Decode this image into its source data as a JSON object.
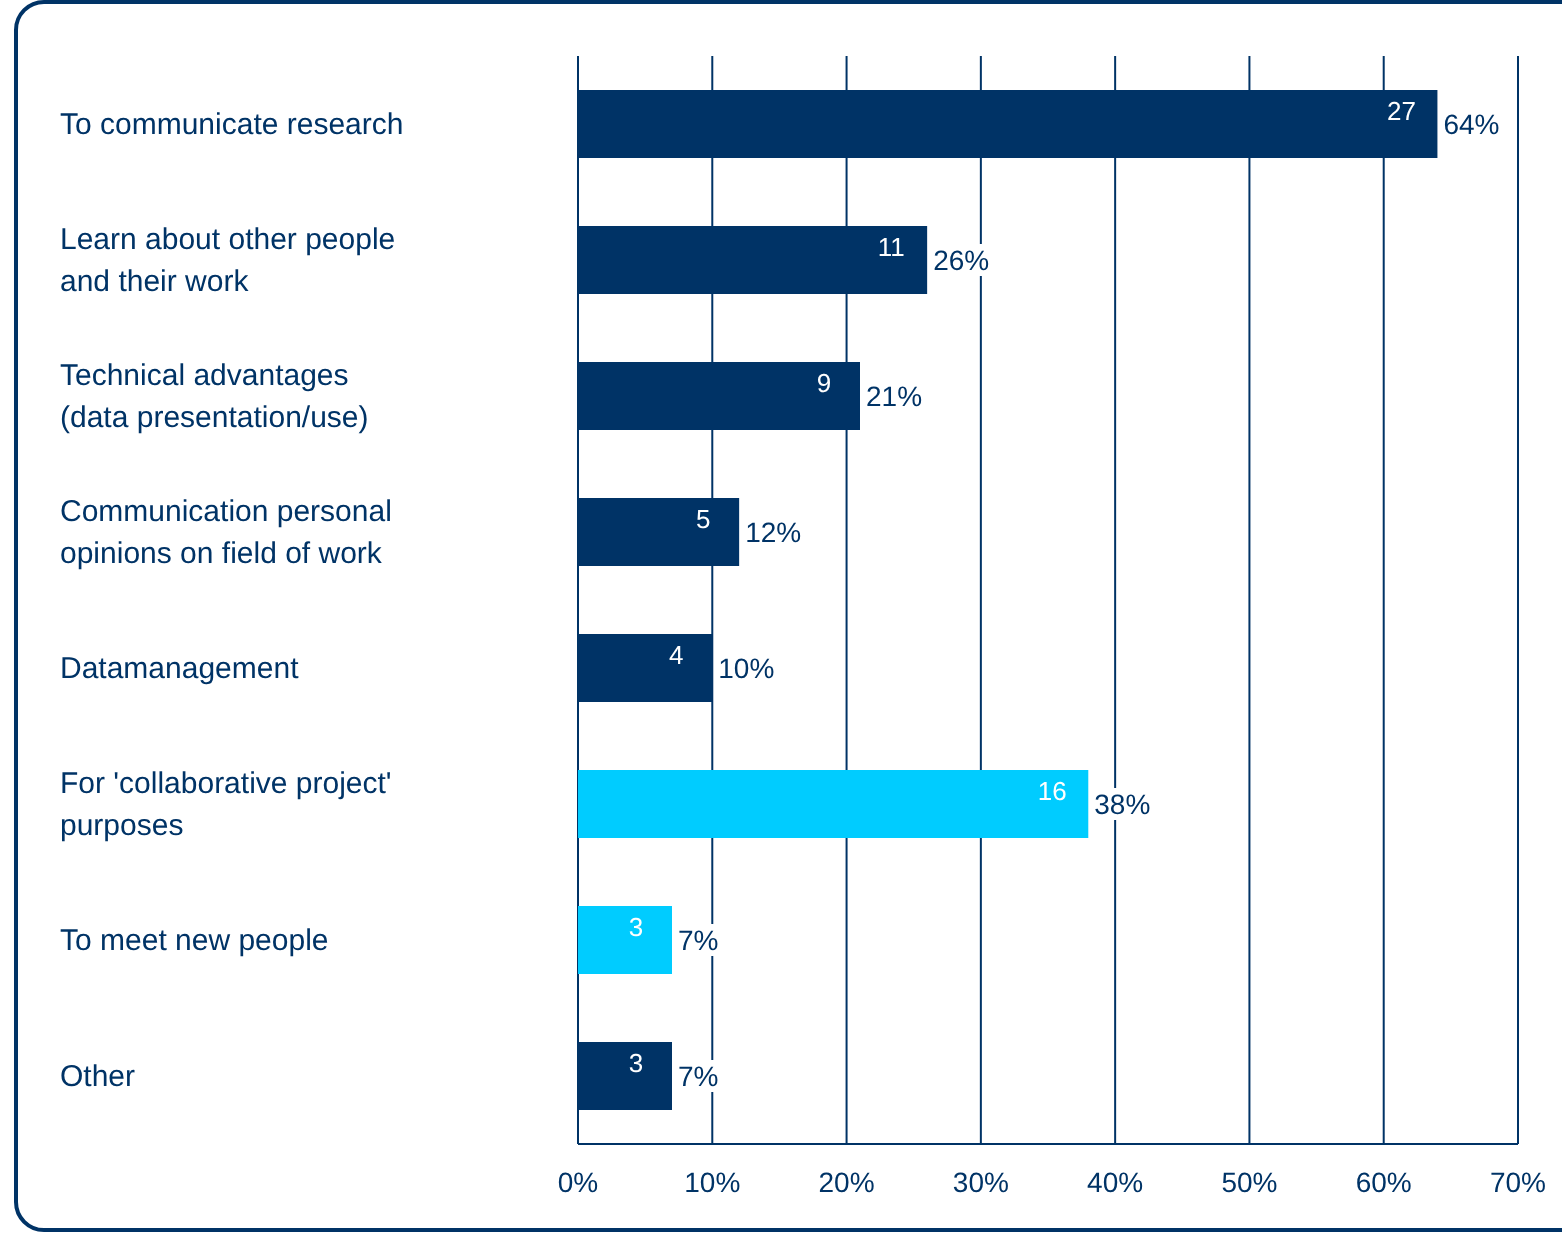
{
  "chart_data": {
    "type": "bar",
    "orientation": "horizontal",
    "categories": [
      "To communicate research",
      "Learn about other people\nand their work",
      "Technical advantages\n(data presentation/use)",
      "Communication personal\nopinions on field of work",
      "Datamanagement",
      "For 'collaborative project'\npurposes",
      "To meet new people",
      "Other"
    ],
    "values": [
      64,
      26,
      21,
      12,
      10,
      38,
      7,
      7
    ],
    "colors": [
      "#003366",
      "#003366",
      "#003366",
      "#003366",
      "#003366",
      "#00ccff",
      "#00ccff",
      "#003366"
    ],
    "value_labels": [
      "64%",
      "26%",
      "21%",
      "12%",
      "10%",
      "38%",
      "7%",
      "7%"
    ],
    "annotations": [
      {
        "text": "27",
        "x": 64,
        "y": "To communicate research"
      },
      {
        "text": "11",
        "x": 26,
        "y": "Learn about other people\nand their work"
      },
      {
        "text": "9",
        "x": 21,
        "y": "Technical advantages\n(data presentation/use)"
      },
      {
        "text": "5",
        "x": 12,
        "y": "Communication personal\nopinions on field of work"
      },
      {
        "text": "4",
        "x": 10,
        "y": "Datamanagement"
      },
      {
        "text": "16",
        "x": 38,
        "y": "For 'collaborative project'\npurposes"
      },
      {
        "text": "3",
        "x": 7,
        "y": "To meet new people"
      },
      {
        "text": "3",
        "x": 7,
        "y": "Other"
      }
    ],
    "xlim": [
      0,
      70
    ],
    "xticks": [
      {
        "value": 0,
        "label": "0%"
      },
      {
        "value": 10,
        "label": "10%"
      },
      {
        "value": 20,
        "label": "20%"
      },
      {
        "value": 30,
        "label": "30%"
      },
      {
        "value": 40,
        "label": "40%"
      },
      {
        "value": 50,
        "label": "50%"
      },
      {
        "value": 60,
        "label": "60%"
      },
      {
        "value": 70,
        "label": "70%"
      }
    ],
    "grid": "x"
  }
}
